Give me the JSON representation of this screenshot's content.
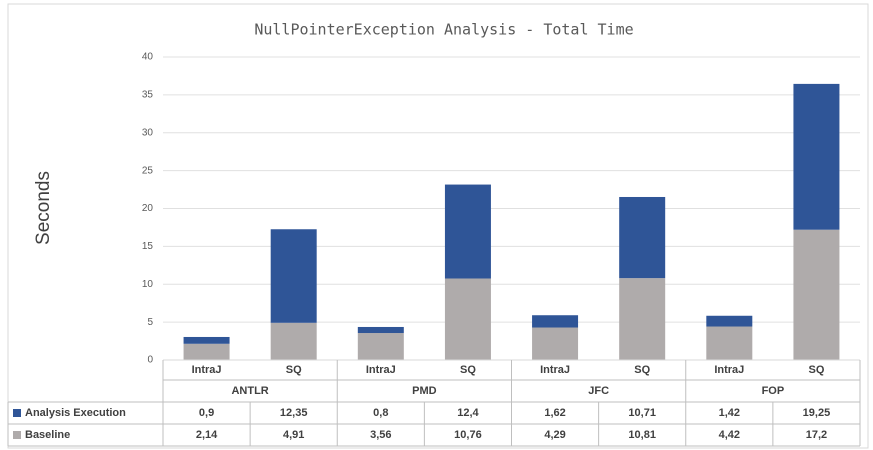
{
  "chart_data": {
    "type": "stacked_bar",
    "title": "NullPointerException Analysis -  Total Time",
    "y_label": "Seconds",
    "categories": [
      "IntraJ",
      "SQ",
      "IntraJ",
      "SQ",
      "IntraJ",
      "SQ",
      "IntraJ",
      "SQ"
    ],
    "groups": [
      "ANTLR",
      "PMD",
      "JFC",
      "FOP"
    ],
    "series": [
      {
        "name": "Baseline",
        "color": "#afabab",
        "values": [
          2.14,
          4.91,
          3.56,
          10.76,
          4.29,
          10.81,
          4.42,
          17.2
        ],
        "value_labels": [
          "2,14",
          "4,91",
          "3,56",
          "10,76",
          "4,29",
          "10,81",
          "4,42",
          "17,2"
        ]
      },
      {
        "name": "Analysis Execution",
        "color": "#2f5597",
        "values": [
          0.9,
          12.35,
          0.8,
          12.4,
          1.62,
          10.71,
          1.42,
          19.25
        ],
        "value_labels": [
          "0,9",
          "12,35",
          "0,8",
          "12,4",
          "1,62",
          "10,71",
          "1,42",
          "19,25"
        ]
      }
    ],
    "ylim": [
      0,
      40
    ],
    "yticks": [
      0,
      5,
      10,
      15,
      20,
      25,
      30,
      35,
      40
    ],
    "grid": true
  }
}
